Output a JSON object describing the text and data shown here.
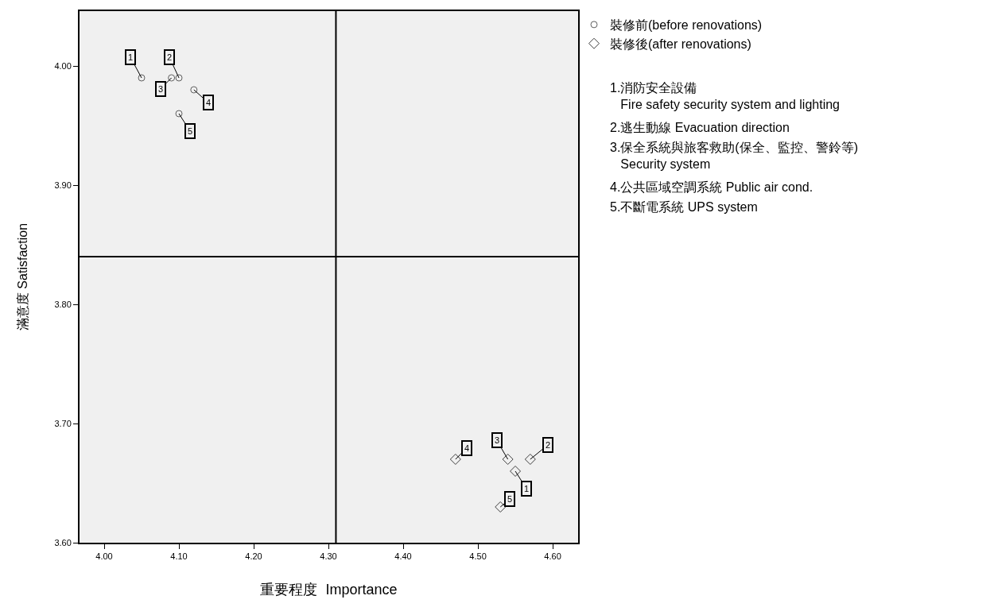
{
  "chart_data": {
    "type": "scatter",
    "xlabel": "重要程度  Importance",
    "ylabel": "滿意度 Satisfaction",
    "xlim": [
      3.967,
      4.634
    ],
    "ylim": [
      3.6,
      4.046
    ],
    "xticks": [
      {
        "value": 4.0,
        "label": "4.00"
      },
      {
        "value": 4.1,
        "label": "4.10"
      },
      {
        "value": 4.2,
        "label": "4.20"
      },
      {
        "value": 4.3,
        "label": "4.30"
      },
      {
        "value": 4.4,
        "label": "4.40"
      },
      {
        "value": 4.5,
        "label": "4.50"
      },
      {
        "value": 4.6,
        "label": "4.60"
      }
    ],
    "yticks": [
      {
        "value": 3.6,
        "label": "3.60"
      },
      {
        "value": 3.7,
        "label": "3.70"
      },
      {
        "value": 3.8,
        "label": "3.80"
      },
      {
        "value": 3.9,
        "label": "3.90"
      },
      {
        "value": 4.0,
        "label": "4.00"
      }
    ],
    "grid": false,
    "legend": "top right",
    "series": [
      {
        "name": "裝修前(before renovations)",
        "color": "#606060",
        "marker": "circle",
        "x": [
          4.05,
          4.1,
          4.09,
          4.12,
          4.1
        ],
        "values": [
          3.99,
          3.99,
          3.99,
          3.98,
          3.96
        ]
      },
      {
        "name": "裝修後(after renovations)",
        "color": "#404040",
        "marker": "diamond",
        "x": [
          4.55,
          4.57,
          4.54,
          4.47,
          4.53
        ],
        "values": [
          3.66,
          3.67,
          3.67,
          3.67,
          3.63
        ]
      }
    ],
    "ref_lines": [
      {
        "axis": "x",
        "value": 4.31,
        "color": "#000000"
      },
      {
        "axis": "y",
        "value": 3.84,
        "color": "#000000"
      }
    ],
    "annotations": [
      {
        "text": "1",
        "x": 4.05,
        "y": 3.99
      },
      {
        "text": "2",
        "x": 4.1,
        "y": 3.99
      },
      {
        "text": "3",
        "x": 4.09,
        "y": 3.99
      },
      {
        "text": "4",
        "x": 4.12,
        "y": 3.98
      },
      {
        "text": "5",
        "x": 4.1,
        "y": 3.96
      },
      {
        "text": "1",
        "x": 4.55,
        "y": 3.66
      },
      {
        "text": "2",
        "x": 4.57,
        "y": 3.67
      },
      {
        "text": "3",
        "x": 4.54,
        "y": 3.67
      },
      {
        "text": "4",
        "x": 4.47,
        "y": 3.67
      },
      {
        "text": "5",
        "x": 4.53,
        "y": 3.63
      },
      "1.消防安全設備\nFire safety security system and lighting",
      "2.逃生動線 Evacuation direction",
      "3.保全系統與旅客救助(保全、監控、警鈴等)\nSecurity system",
      "4.公共區域空調系統 Public air cond.",
      "5.不斷電系統 UPS system"
    ]
  }
}
